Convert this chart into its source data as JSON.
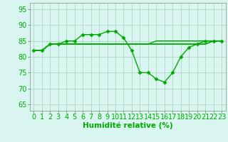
{
  "xlabel": "Humidité relative (%)",
  "xlim": [
    -0.5,
    23.5
  ],
  "ylim": [
    63,
    97
  ],
  "yticks": [
    65,
    70,
    75,
    80,
    85,
    90,
    95
  ],
  "xticks": [
    0,
    1,
    2,
    3,
    4,
    5,
    6,
    7,
    8,
    9,
    10,
    11,
    12,
    13,
    14,
    15,
    16,
    17,
    18,
    19,
    20,
    21,
    22,
    23
  ],
  "background_color": "#d8f5f0",
  "grid_color": "#aaccbb",
  "line_color": "#00aa00",
  "series1": [
    82,
    82,
    84,
    84,
    85,
    85,
    87,
    87,
    87,
    88,
    88,
    86,
    82,
    75,
    75,
    73,
    72,
    75,
    80,
    83,
    84,
    85,
    85,
    85
  ],
  "series2": [
    82,
    82,
    84,
    84,
    84,
    84,
    84,
    84,
    84,
    84,
    84,
    84,
    84,
    84,
    84,
    84,
    84,
    84,
    84,
    84,
    84,
    84,
    85,
    85
  ],
  "series3": [
    82,
    82,
    84,
    84,
    84,
    84,
    84,
    84,
    84,
    84,
    84,
    84,
    84,
    84,
    84,
    84,
    84,
    84,
    84,
    84,
    84,
    84,
    85,
    85
  ],
  "series4": [
    82,
    82,
    84,
    84,
    84,
    84,
    84,
    84,
    84,
    84,
    84,
    84,
    84,
    84,
    84,
    85,
    85,
    85,
    85,
    85,
    85,
    85,
    85,
    85
  ],
  "marker": "D",
  "markersize": 2.5,
  "linewidth": 1.0,
  "font_color": "#00aa00",
  "font_size": 7,
  "xlabel_fontsize": 7.5
}
